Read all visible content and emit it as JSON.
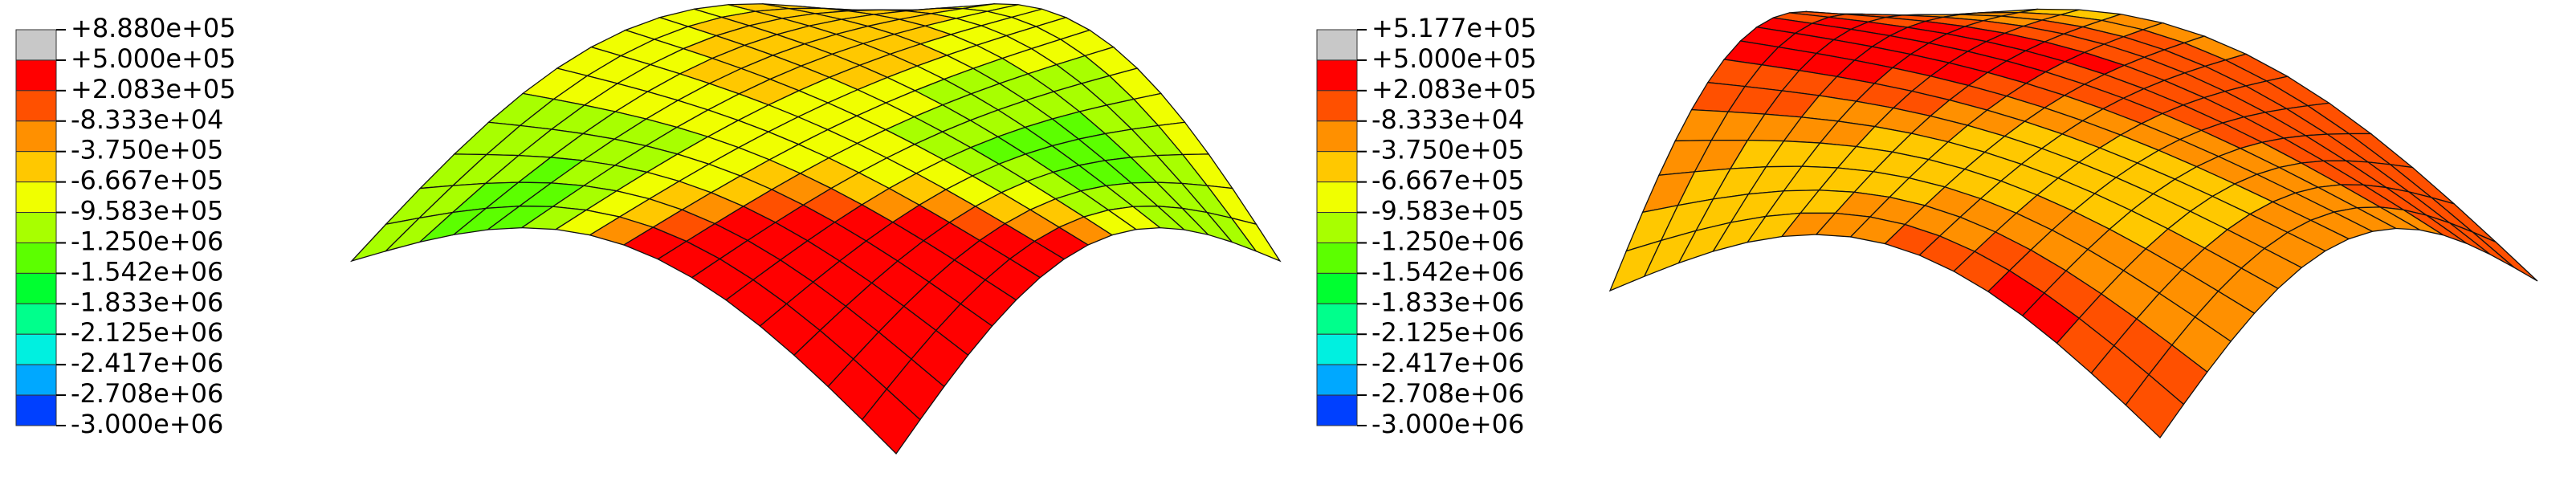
{
  "panels": [
    {
      "legend": {
        "labels": [
          "+8.880e+05",
          "+5.000e+05",
          "+2.083e+05",
          "-8.333e+04",
          "-3.750e+05",
          "-6.667e+05",
          "-9.583e+05",
          "-1.250e+06",
          "-1.542e+06",
          "-1.833e+06",
          "-2.125e+06",
          "-2.417e+06",
          "-2.708e+06",
          "-3.000e+06"
        ]
      }
    },
    {
      "legend": {
        "labels": [
          "+5.177e+05",
          "+5.000e+05",
          "+2.083e+05",
          "-8.333e+04",
          "-3.750e+05",
          "-6.667e+05",
          "-9.583e+05",
          "-1.250e+06",
          "-1.542e+06",
          "-1.833e+06",
          "-2.125e+06",
          "-2.417e+06",
          "-2.708e+06",
          "-3.000e+06"
        ]
      }
    }
  ],
  "legend_colors": [
    "#c8c8c8",
    "#ff0000",
    "#ff5000",
    "#ff9000",
    "#ffc800",
    "#f0ff00",
    "#a8ff00",
    "#5cff00",
    "#00ff30",
    "#00ff8c",
    "#00f0e0",
    "#00a8ff",
    "#0040ff"
  ]
}
